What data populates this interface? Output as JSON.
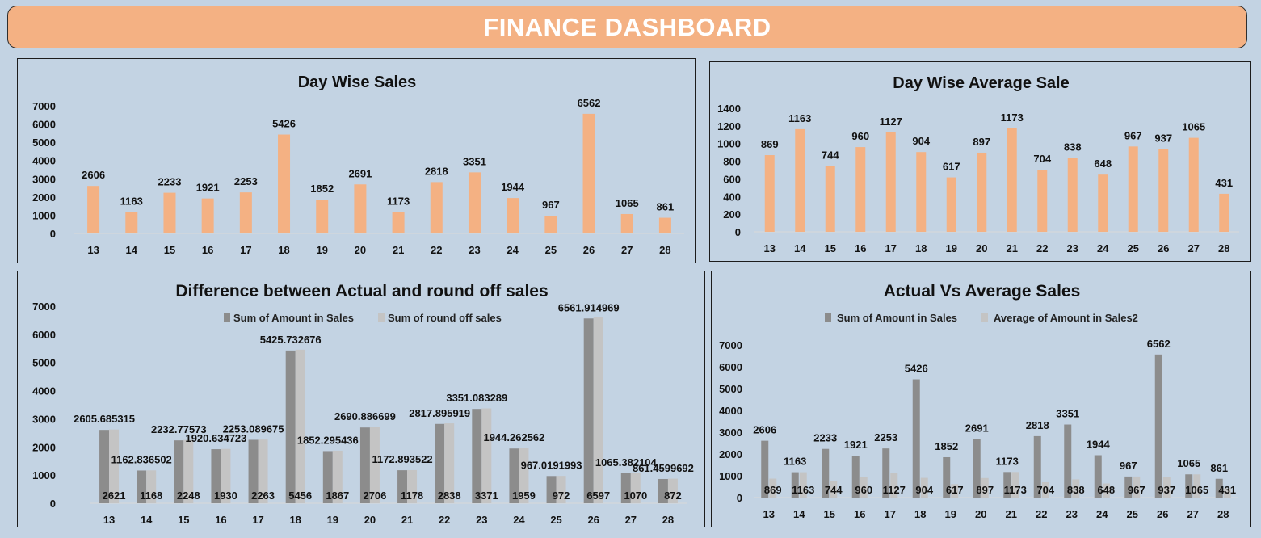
{
  "header": {
    "title": "FINANCE DASHBOARD"
  },
  "colors": {
    "background": "#c3d3e3",
    "banner": "#f4b183",
    "orange_bar": "#f4b183",
    "dark_gray_bar": "#8c8c8c",
    "light_gray_bar": "#c4c4c4"
  },
  "chart_data": [
    {
      "id": "day-wise-sales",
      "type": "bar",
      "title": "Day Wise Sales",
      "categories": [
        "13",
        "14",
        "15",
        "16",
        "17",
        "18",
        "19",
        "20",
        "21",
        "22",
        "23",
        "24",
        "25",
        "26",
        "27",
        "28"
      ],
      "series": [
        {
          "values": [
            2606,
            1163,
            2233,
            1921,
            2253,
            5426,
            1852,
            2691,
            1173,
            2818,
            3351,
            1944,
            967,
            6562,
            1065,
            861
          ],
          "labels": [
            "2606",
            "1163",
            "2233",
            "1921",
            "2253",
            "5426",
            "1852",
            "2691",
            "1173",
            "2818",
            "3351",
            "1944",
            "967",
            "6562",
            "1065",
            "861"
          ]
        }
      ],
      "yticks": [
        "0",
        "1000",
        "2000",
        "3000",
        "4000",
        "5000",
        "6000",
        "7000"
      ],
      "ylim": [
        0,
        7000
      ],
      "grid": false,
      "legend": "none"
    },
    {
      "id": "day-wise-average-sale",
      "type": "bar",
      "title": "Day Wise Average Sale",
      "categories": [
        "13",
        "14",
        "15",
        "16",
        "17",
        "18",
        "19",
        "20",
        "21",
        "22",
        "23",
        "24",
        "25",
        "26",
        "27",
        "28"
      ],
      "series": [
        {
          "values": [
            869,
            1163,
            744,
            960,
            1127,
            904,
            617,
            897,
            1173,
            704,
            838,
            648,
            967,
            937,
            1065,
            431
          ],
          "labels": [
            "869",
            "1163",
            "744",
            "960",
            "1127",
            "904",
            "617",
            "897",
            "1173",
            "704",
            "838",
            "648",
            "967",
            "937",
            "1065",
            "431"
          ]
        }
      ],
      "yticks": [
        "0",
        "200",
        "400",
        "600",
        "800",
        "1000",
        "1200",
        "1400"
      ],
      "ylim": [
        0,
        1400
      ],
      "grid": false,
      "legend": "none"
    },
    {
      "id": "difference-actual-round-off",
      "type": "bar",
      "title": "Difference between Actual and round off sales",
      "categories": [
        "13",
        "14",
        "15",
        "16",
        "17",
        "18",
        "19",
        "20",
        "21",
        "22",
        "23",
        "24",
        "25",
        "26",
        "27",
        "28"
      ],
      "series": [
        {
          "name": "Sum of Amount in Sales",
          "values": [
            2605.685315,
            1162.836502,
            2232.77573,
            1920.634723,
            2253.089675,
            5425.732676,
            1852.295436,
            2690.886699,
            1172.893522,
            2817.895919,
            3351.083289,
            1944.262562,
            967.0191993,
            6561.914969,
            1065.382104,
            861.4599692
          ],
          "labels": [
            "2605.685315",
            "1162.836502",
            "2232.77573",
            "1920.634723",
            "2253.089675",
            "5425.732676",
            "1852.295436",
            "2690.886699",
            "1172.893522",
            "2817.895919",
            "3351.083289",
            "1944.262562",
            "967.0191993",
            "6561.914969",
            "1065.382104",
            "861.4599692"
          ]
        },
        {
          "name": "Sum of round off sales",
          "values": [
            2621,
            1168,
            2248,
            1930,
            2263,
            5456,
            1867,
            2706,
            1178,
            2838,
            3371,
            1959,
            972,
            6597,
            1070,
            872
          ],
          "labels": [
            "2621",
            "1168",
            "2248",
            "1930",
            "2263",
            "5456",
            "1867",
            "2706",
            "1178",
            "2838",
            "3371",
            "1959",
            "972",
            "6597",
            "1070",
            "872"
          ]
        }
      ],
      "yticks": [
        "0",
        "1000",
        "2000",
        "3000",
        "4000",
        "5000",
        "6000",
        "7000"
      ],
      "ylim": [
        0,
        7000
      ],
      "grid": false,
      "legend": "top"
    },
    {
      "id": "actual-vs-average",
      "type": "bar",
      "title": "Actual Vs Average Sales",
      "categories": [
        "13",
        "14",
        "15",
        "16",
        "17",
        "18",
        "19",
        "20",
        "21",
        "22",
        "23",
        "24",
        "25",
        "26",
        "27",
        "28"
      ],
      "series": [
        {
          "name": "Sum of Amount in Sales",
          "values": [
            2606,
            1163,
            2233,
            1921,
            2253,
            5426,
            1852,
            2691,
            1173,
            2818,
            3351,
            1944,
            967,
            6562,
            1065,
            861
          ],
          "labels": [
            "2606",
            "1163",
            "2233",
            "1921",
            "2253",
            "5426",
            "1852",
            "2691",
            "1173",
            "2818",
            "3351",
            "1944",
            "967",
            "6562",
            "1065",
            "861"
          ]
        },
        {
          "name": "Average of Amount in Sales2",
          "values": [
            869,
            1163,
            744,
            960,
            1127,
            904,
            617,
            897,
            1173,
            704,
            838,
            648,
            967,
            937,
            1065,
            431
          ],
          "labels": [
            "869",
            "1163",
            "744",
            "960",
            "1127",
            "904",
            "617",
            "897",
            "1173",
            "704",
            "838",
            "648",
            "967",
            "937",
            "1065",
            "431"
          ]
        }
      ],
      "yticks": [
        "0",
        "1000",
        "2000",
        "3000",
        "4000",
        "5000",
        "6000",
        "7000"
      ],
      "ylim": [
        0,
        7000
      ],
      "grid": false,
      "legend": "top"
    }
  ]
}
